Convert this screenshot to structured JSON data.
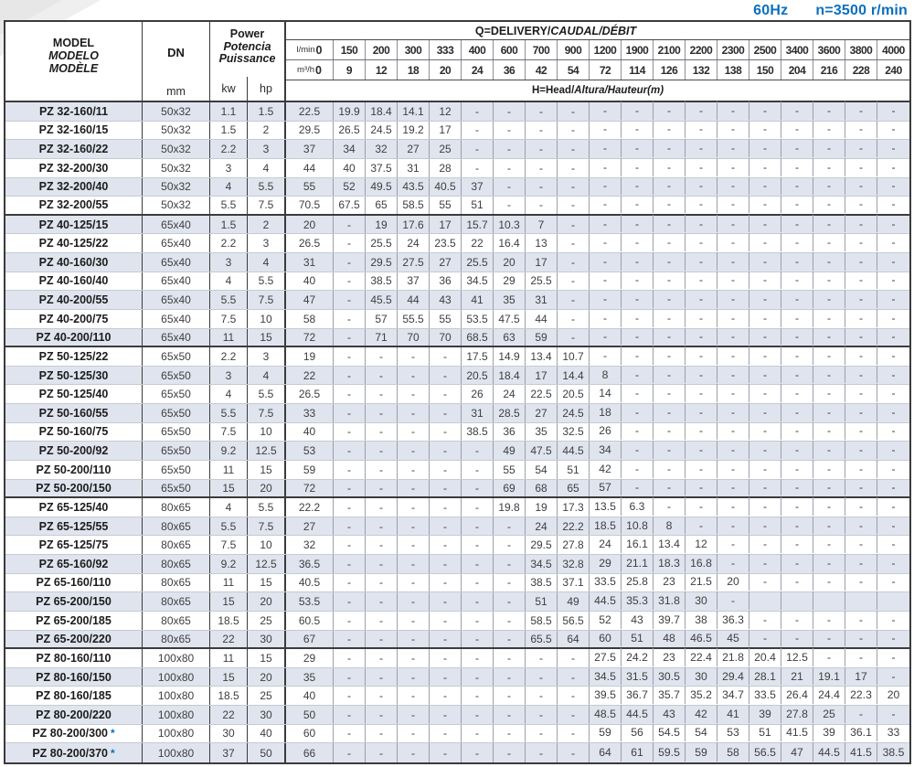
{
  "page": {
    "frequency": "60Hz",
    "speed": "n=3500 r/min"
  },
  "colors": {
    "accent_blue": "#0b6fbe",
    "row_shade": "#dfe4ee"
  },
  "table": {
    "model_header": {
      "en": "MODEL",
      "es": "MODELO",
      "fr": "MODÈLE"
    },
    "dn_label": "DN",
    "dn_unit": "mm",
    "power_header": {
      "en": "Power",
      "es": "Potencia",
      "fr": "Puissance"
    },
    "power_units": {
      "kw": "kw",
      "hp": "hp"
    },
    "q_title": {
      "prefix": "Q=DELIVERY/",
      "italic": "CAUDAL/DÉBIT"
    },
    "head_title": {
      "prefix": "H=Head/",
      "italic": "Altura/Hauteur(m)"
    },
    "flow_lmin": {
      "label": "l/min",
      "zero": "0",
      "values": [
        "150",
        "200",
        "300",
        "333",
        "400",
        "600",
        "700",
        "900",
        "1200",
        "1900",
        "2100",
        "2200",
        "2300",
        "2500",
        "3400",
        "3600",
        "3800",
        "4000"
      ]
    },
    "flow_m3h": {
      "label": "m³/h",
      "zero": "0",
      "values": [
        "9",
        "12",
        "18",
        "20",
        "24",
        "36",
        "42",
        "54",
        "72",
        "114",
        "126",
        "132",
        "138",
        "150",
        "204",
        "216",
        "228",
        "240"
      ]
    },
    "group_end_rows": [
      6,
      13,
      21,
      29
    ],
    "rows": [
      {
        "model": "PZ 32-160/11",
        "note": "",
        "dn": "50x32",
        "kw": "1.1",
        "hp": "1.5",
        "heads": [
          "22.5",
          "19.9",
          "18.4",
          "14.1",
          "12",
          "-",
          "-",
          "-",
          "-",
          "-",
          "-",
          "-",
          "-",
          "-",
          "-",
          "-",
          "-",
          "-",
          "-"
        ]
      },
      {
        "model": "PZ 32-160/15",
        "note": "",
        "dn": "50x32",
        "kw": "1.5",
        "hp": "2",
        "heads": [
          "29.5",
          "26.5",
          "24.5",
          "19.2",
          "17",
          "-",
          "-",
          "-",
          "-",
          "-",
          "-",
          "-",
          "-",
          "-",
          "-",
          "-",
          "-",
          "-",
          "-"
        ]
      },
      {
        "model": "PZ 32-160/22",
        "note": "",
        "dn": "50x32",
        "kw": "2.2",
        "hp": "3",
        "heads": [
          "37",
          "34",
          "32",
          "27",
          "25",
          "-",
          "-",
          "-",
          "-",
          "-",
          "-",
          "-",
          "-",
          "-",
          "-",
          "-",
          "-",
          "-",
          "-"
        ]
      },
      {
        "model": "PZ 32-200/30",
        "note": "",
        "dn": "50x32",
        "kw": "3",
        "hp": "4",
        "heads": [
          "44",
          "40",
          "37.5",
          "31",
          "28",
          "-",
          "-",
          "-",
          "-",
          "-",
          "-",
          "-",
          "-",
          "-",
          "-",
          "-",
          "-",
          "-",
          "-"
        ]
      },
      {
        "model": "PZ 32-200/40",
        "note": "",
        "dn": "50x32",
        "kw": "4",
        "hp": "5.5",
        "heads": [
          "55",
          "52",
          "49.5",
          "43.5",
          "40.5",
          "37",
          "-",
          "-",
          "-",
          "-",
          "-",
          "-",
          "-",
          "-",
          "-",
          "-",
          "-",
          "-",
          "-"
        ]
      },
      {
        "model": "PZ 32-200/55",
        "note": "",
        "dn": "50x32",
        "kw": "5.5",
        "hp": "7.5",
        "heads": [
          "70.5",
          "67.5",
          "65",
          "58.5",
          "55",
          "51",
          "-",
          "-",
          "-",
          "-",
          "-",
          "-",
          "-",
          "-",
          "-",
          "-",
          "-",
          "-",
          "-"
        ]
      },
      {
        "model": "PZ 40-125/15",
        "note": "",
        "dn": "65x40",
        "kw": "1.5",
        "hp": "2",
        "heads": [
          "20",
          "-",
          "19",
          "17.6",
          "17",
          "15.7",
          "10.3",
          "7",
          "-",
          "-",
          "-",
          "-",
          "-",
          "-",
          "-",
          "-",
          "-",
          "-",
          "-"
        ]
      },
      {
        "model": "PZ 40-125/22",
        "note": "",
        "dn": "65x40",
        "kw": "2.2",
        "hp": "3",
        "heads": [
          "26.5",
          "-",
          "25.5",
          "24",
          "23.5",
          "22",
          "16.4",
          "13",
          "-",
          "-",
          "-",
          "-",
          "-",
          "-",
          "-",
          "-",
          "-",
          "-",
          "-"
        ]
      },
      {
        "model": "PZ 40-160/30",
        "note": "",
        "dn": "65x40",
        "kw": "3",
        "hp": "4",
        "heads": [
          "31",
          "-",
          "29.5",
          "27.5",
          "27",
          "25.5",
          "20",
          "17",
          "-",
          "-",
          "-",
          "-",
          "-",
          "-",
          "-",
          "-",
          "-",
          "-",
          "-"
        ]
      },
      {
        "model": "PZ 40-160/40",
        "note": "",
        "dn": "65x40",
        "kw": "4",
        "hp": "5.5",
        "heads": [
          "40",
          "-",
          "38.5",
          "37",
          "36",
          "34.5",
          "29",
          "25.5",
          "-",
          "-",
          "-",
          "-",
          "-",
          "-",
          "-",
          "-",
          "-",
          "-",
          "-"
        ]
      },
      {
        "model": "PZ 40-200/55",
        "note": "",
        "dn": "65x40",
        "kw": "5.5",
        "hp": "7.5",
        "heads": [
          "47",
          "-",
          "45.5",
          "44",
          "43",
          "41",
          "35",
          "31",
          "-",
          "-",
          "-",
          "-",
          "-",
          "-",
          "-",
          "-",
          "-",
          "-",
          "-"
        ]
      },
      {
        "model": "PZ 40-200/75",
        "note": "",
        "dn": "65x40",
        "kw": "7.5",
        "hp": "10",
        "heads": [
          "58",
          "-",
          "57",
          "55.5",
          "55",
          "53.5",
          "47.5",
          "44",
          "-",
          "-",
          "-",
          "-",
          "-",
          "-",
          "-",
          "-",
          "-",
          "-",
          "-"
        ]
      },
      {
        "model": "PZ 40-200/110",
        "note": "",
        "dn": "65x40",
        "kw": "11",
        "hp": "15",
        "heads": [
          "72",
          "-",
          "71",
          "70",
          "70",
          "68.5",
          "63",
          "59",
          "-",
          "-",
          "-",
          "-",
          "-",
          "-",
          "-",
          "-",
          "-",
          "-",
          "-"
        ]
      },
      {
        "model": "PZ 50-125/22",
        "note": "",
        "dn": "65x50",
        "kw": "2.2",
        "hp": "3",
        "heads": [
          "19",
          "-",
          "-",
          "-",
          "-",
          "17.5",
          "14.9",
          "13.4",
          "10.7",
          "-",
          "-",
          "-",
          "-",
          "-",
          "-",
          "-",
          "-",
          "-",
          "-"
        ]
      },
      {
        "model": "PZ 50-125/30",
        "note": "",
        "dn": "65x50",
        "kw": "3",
        "hp": "4",
        "heads": [
          "22",
          "-",
          "-",
          "-",
          "-",
          "20.5",
          "18.4",
          "17",
          "14.4",
          "8",
          "-",
          "-",
          "-",
          "-",
          "-",
          "-",
          "-",
          "-",
          "-"
        ]
      },
      {
        "model": "PZ 50-125/40",
        "note": "",
        "dn": "65x50",
        "kw": "4",
        "hp": "5.5",
        "heads": [
          "26.5",
          "-",
          "-",
          "-",
          "-",
          "26",
          "24",
          "22.5",
          "20.5",
          "14",
          "-",
          "-",
          "-",
          "-",
          "-",
          "-",
          "-",
          "-",
          "-"
        ]
      },
      {
        "model": "PZ 50-160/55",
        "note": "",
        "dn": "65x50",
        "kw": "5.5",
        "hp": "7.5",
        "heads": [
          "33",
          "-",
          "-",
          "-",
          "-",
          "31",
          "28.5",
          "27",
          "24.5",
          "18",
          "-",
          "-",
          "-",
          "-",
          "-",
          "-",
          "-",
          "-",
          "-"
        ]
      },
      {
        "model": "PZ 50-160/75",
        "note": "",
        "dn": "65x50",
        "kw": "7.5",
        "hp": "10",
        "heads": [
          "40",
          "-",
          "-",
          "-",
          "-",
          "38.5",
          "36",
          "35",
          "32.5",
          "26",
          "-",
          "-",
          "-",
          "-",
          "-",
          "-",
          "-",
          "-",
          "-"
        ]
      },
      {
        "model": "PZ 50-200/92",
        "note": "",
        "dn": "65x50",
        "kw": "9.2",
        "hp": "12.5",
        "heads": [
          "53",
          "-",
          "-",
          "-",
          "-",
          "-",
          "49",
          "47.5",
          "44.5",
          "34",
          "-",
          "-",
          "-",
          "-",
          "-",
          "-",
          "-",
          "-",
          "-"
        ]
      },
      {
        "model": "PZ 50-200/110",
        "note": "",
        "dn": "65x50",
        "kw": "11",
        "hp": "15",
        "heads": [
          "59",
          "-",
          "-",
          "-",
          "-",
          "-",
          "55",
          "54",
          "51",
          "42",
          "-",
          "-",
          "-",
          "-",
          "-",
          "-",
          "-",
          "-",
          "-"
        ]
      },
      {
        "model": "PZ 50-200/150",
        "note": "",
        "dn": "65x50",
        "kw": "15",
        "hp": "20",
        "heads": [
          "72",
          "-",
          "-",
          "-",
          "-",
          "-",
          "69",
          "68",
          "65",
          "57",
          "-",
          "-",
          "-",
          "-",
          "-",
          "-",
          "-",
          "-",
          "-"
        ]
      },
      {
        "model": "PZ 65-125/40",
        "note": "",
        "dn": "80x65",
        "kw": "4",
        "hp": "5.5",
        "heads": [
          "22.2",
          "-",
          "-",
          "-",
          "-",
          "-",
          "19.8",
          "19",
          "17.3",
          "13.5",
          "6.3",
          "-",
          "-",
          "-",
          "-",
          "-",
          "-",
          "-",
          "-"
        ]
      },
      {
        "model": "PZ 65-125/55",
        "note": "",
        "dn": "80x65",
        "kw": "5.5",
        "hp": "7.5",
        "heads": [
          "27",
          "-",
          "-",
          "-",
          "-",
          "-",
          "-",
          "24",
          "22.2",
          "18.5",
          "10.8",
          "8",
          "-",
          "-",
          "-",
          "-",
          "-",
          "-",
          "-"
        ]
      },
      {
        "model": "PZ 65-125/75",
        "note": "",
        "dn": "80x65",
        "kw": "7.5",
        "hp": "10",
        "heads": [
          "32",
          "-",
          "-",
          "-",
          "-",
          "-",
          "-",
          "29.5",
          "27.8",
          "24",
          "16.1",
          "13.4",
          "12",
          "-",
          "-",
          "-",
          "-",
          "-",
          "-"
        ]
      },
      {
        "model": "PZ 65-160/92",
        "note": "",
        "dn": "80x65",
        "kw": "9.2",
        "hp": "12.5",
        "heads": [
          "36.5",
          "-",
          "-",
          "-",
          "-",
          "-",
          "-",
          "34.5",
          "32.8",
          "29",
          "21.1",
          "18.3",
          "16.8",
          "-",
          "-",
          "-",
          "-",
          "-",
          "-"
        ]
      },
      {
        "model": "PZ 65-160/110",
        "note": "",
        "dn": "80x65",
        "kw": "11",
        "hp": "15",
        "heads": [
          "40.5",
          "-",
          "-",
          "-",
          "-",
          "-",
          "-",
          "38.5",
          "37.1",
          "33.5",
          "25.8",
          "23",
          "21.5",
          "20",
          "-",
          "-",
          "-",
          "-",
          "-"
        ]
      },
      {
        "model": "PZ 65-200/150",
        "note": "",
        "dn": "80x65",
        "kw": "15",
        "hp": "20",
        "heads": [
          "53.5",
          "-",
          "-",
          "-",
          "-",
          "-",
          "-",
          "51",
          "49",
          "44.5",
          "35.3",
          "31.8",
          "30",
          "-",
          "",
          "",
          "",
          "",
          ""
        ]
      },
      {
        "model": "PZ 65-200/185",
        "note": "",
        "dn": "80x65",
        "kw": "18.5",
        "hp": "25",
        "heads": [
          "60.5",
          "-",
          "-",
          "-",
          "-",
          "-",
          "-",
          "58.5",
          "56.5",
          "52",
          "43",
          "39.7",
          "38",
          "36.3",
          "-",
          "-",
          "-",
          "-",
          "-"
        ]
      },
      {
        "model": "PZ 65-200/220",
        "note": "",
        "dn": "80x65",
        "kw": "22",
        "hp": "30",
        "heads": [
          "67",
          "-",
          "-",
          "-",
          "-",
          "-",
          "-",
          "65.5",
          "64",
          "60",
          "51",
          "48",
          "46.5",
          "45",
          "-",
          "-",
          "-",
          "-",
          "-"
        ]
      },
      {
        "model": "PZ 80-160/110",
        "note": "",
        "dn": "100x80",
        "kw": "11",
        "hp": "15",
        "heads": [
          "29",
          "-",
          "-",
          "-",
          "-",
          "-",
          "-",
          "-",
          "-",
          "27.5",
          "24.2",
          "23",
          "22.4",
          "21.8",
          "20.4",
          "12.5",
          "-",
          "-",
          "-"
        ]
      },
      {
        "model": "PZ 80-160/150",
        "note": "",
        "dn": "100x80",
        "kw": "15",
        "hp": "20",
        "heads": [
          "35",
          "-",
          "-",
          "-",
          "-",
          "-",
          "-",
          "-",
          "-",
          "34.5",
          "31.5",
          "30.5",
          "30",
          "29.4",
          "28.1",
          "21",
          "19.1",
          "17",
          "-"
        ]
      },
      {
        "model": "PZ 80-160/185",
        "note": "",
        "dn": "100x80",
        "kw": "18.5",
        "hp": "25",
        "heads": [
          "40",
          "-",
          "-",
          "-",
          "-",
          "-",
          "-",
          "-",
          "-",
          "39.5",
          "36.7",
          "35.7",
          "35.2",
          "34.7",
          "33.5",
          "26.4",
          "24.4",
          "22.3",
          "20"
        ]
      },
      {
        "model": "PZ 80-200/220",
        "note": "",
        "dn": "100x80",
        "kw": "22",
        "hp": "30",
        "heads": [
          "50",
          "-",
          "-",
          "-",
          "-",
          "-",
          "-",
          "-",
          "-",
          "48.5",
          "44.5",
          "43",
          "42",
          "41",
          "39",
          "27.8",
          "25",
          "-",
          "-"
        ]
      },
      {
        "model": "PZ 80-200/300",
        "note": "*",
        "dn": "100x80",
        "kw": "30",
        "hp": "40",
        "heads": [
          "60",
          "-",
          "-",
          "-",
          "-",
          "-",
          "-",
          "-",
          "-",
          "59",
          "56",
          "54.5",
          "54",
          "53",
          "51",
          "41.5",
          "39",
          "36.1",
          "33"
        ]
      },
      {
        "model": "PZ 80-200/370",
        "note": "*",
        "dn": "100x80",
        "kw": "37",
        "hp": "50",
        "heads": [
          "66",
          "-",
          "-",
          "-",
          "-",
          "-",
          "-",
          "-",
          "-",
          "64",
          "61",
          "59.5",
          "59",
          "58",
          "56.5",
          "47",
          "44.5",
          "41.5",
          "38.5"
        ]
      }
    ]
  }
}
